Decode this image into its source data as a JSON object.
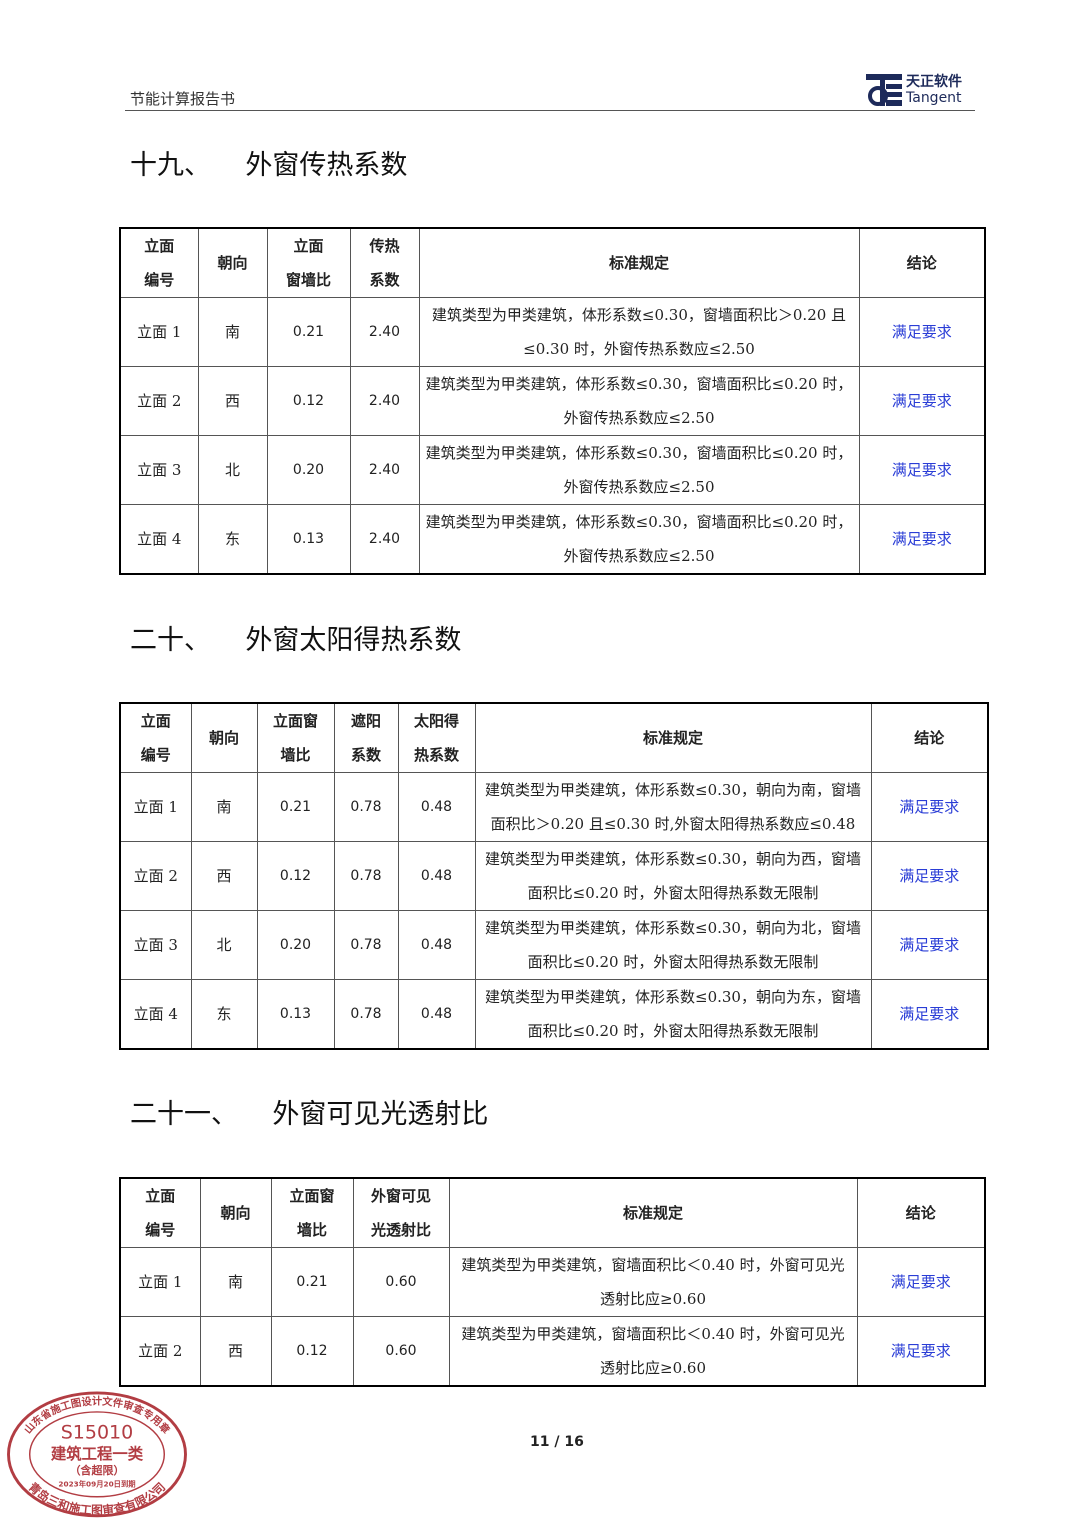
{
  "header": {
    "title": "节能计算报告书",
    "logo_cn": "天正软件",
    "logo_en": "Tangent"
  },
  "sections": [
    {
      "heading": "十九、    外窗传热系数",
      "headers": [
        "立面\n编号",
        "朝向",
        "立面\n窗墙比",
        "传热\n系数",
        "标准规定",
        "结论"
      ],
      "rows": [
        [
          "立面 1",
          "南",
          "0.21",
          "2.40",
          "建筑类型为甲类建筑，体形系数≤0.30，窗墙面积比＞0.20 且≤0.30 时，外窗传热系数应≤2.50",
          "满足要求"
        ],
        [
          "立面 2",
          "西",
          "0.12",
          "2.40",
          "建筑类型为甲类建筑，体形系数≤0.30，窗墙面积比≤0.20 时，外窗传热系数应≤2.50",
          "满足要求"
        ],
        [
          "立面 3",
          "北",
          "0.20",
          "2.40",
          "建筑类型为甲类建筑，体形系数≤0.30，窗墙面积比≤0.20 时，外窗传热系数应≤2.50",
          "满足要求"
        ],
        [
          "立面 4",
          "东",
          "0.13",
          "2.40",
          "建筑类型为甲类建筑，体形系数≤0.30，窗墙面积比≤0.20 时，外窗传热系数应≤2.50",
          "满足要求"
        ]
      ]
    },
    {
      "heading": "二十、    外窗太阳得热系数",
      "headers": [
        "立面\n编号",
        "朝向",
        "立面窗\n墙比",
        "遮阳\n系数",
        "太阳得\n热系数",
        "标准规定",
        "结论"
      ],
      "rows": [
        [
          "立面 1",
          "南",
          "0.21",
          "0.78",
          "0.48",
          "建筑类型为甲类建筑，体形系数≤0.30，朝向为南，窗墙面积比＞0.20 且≤0.30 时,外窗太阳得热系数应≤0.48",
          "满足要求"
        ],
        [
          "立面 2",
          "西",
          "0.12",
          "0.78",
          "0.48",
          "建筑类型为甲类建筑，体形系数≤0.30，朝向为西，窗墙面积比≤0.20 时，外窗太阳得热系数无限制",
          "满足要求"
        ],
        [
          "立面 3",
          "北",
          "0.20",
          "0.78",
          "0.48",
          "建筑类型为甲类建筑，体形系数≤0.30，朝向为北，窗墙面积比≤0.20 时，外窗太阳得热系数无限制",
          "满足要求"
        ],
        [
          "立面 4",
          "东",
          "0.13",
          "0.78",
          "0.48",
          "建筑类型为甲类建筑，体形系数≤0.30，朝向为东，窗墙面积比≤0.20 时，外窗太阳得热系数无限制",
          "满足要求"
        ]
      ]
    },
    {
      "heading": "二十一、    外窗可见光透射比",
      "headers": [
        "立面\n编号",
        "朝向",
        "立面窗\n墙比",
        "外窗可见\n光透射比",
        "标准规定",
        "结论"
      ],
      "rows": [
        [
          "立面 1",
          "南",
          "0.21",
          "0.60",
          "建筑类型为甲类建筑，窗墙面积比＜0.40 时，外窗可见光透射比应≥0.60",
          "满足要求"
        ],
        [
          "立面 2",
          "西",
          "0.12",
          "0.60",
          "建筑类型为甲类建筑，窗墙面积比＜0.40 时，外窗可见光透射比应≥0.60",
          "满足要求"
        ]
      ]
    }
  ],
  "page_number": "11 / 16",
  "stamp": {
    "top": "山东省施工图设计文件审查专用章",
    "code": "S15010",
    "category": "建筑工程一类",
    "note": "（含超限）",
    "date": "2023年09月20日到期",
    "bottom": "青岛三和施工图审查有限公司",
    "color": "#a8232a"
  }
}
